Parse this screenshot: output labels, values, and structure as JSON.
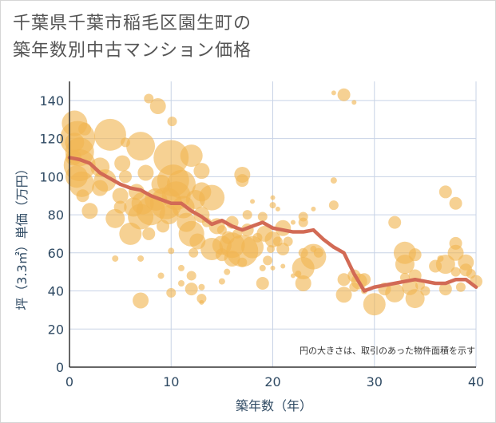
{
  "chart_data": {
    "type": "scatter",
    "title": "千葉県千葉市稲毛区園生町の\n築年数別中古マンション価格",
    "xlabel": "築年数（年）",
    "ylabel": "坪（3.3㎡）単価（万円）",
    "xlim": [
      0,
      40
    ],
    "ylim": [
      0,
      150
    ],
    "x_ticks": [
      "0",
      "10",
      "20",
      "30",
      "40"
    ],
    "y_ticks": [
      "0",
      "20",
      "40",
      "60",
      "80",
      "100",
      "120",
      "140"
    ],
    "annotation": "円の大きさは、取引のあった物件面積を示す",
    "grid": true,
    "colors": {
      "bubble": "#f0b451",
      "line": "#d26a55",
      "grid": "#c8d3e6",
      "axis": "#333333",
      "text": "#2f4a63"
    },
    "series": [
      {
        "type": "bubble",
        "points": [
          {
            "x": 0.5,
            "y": 128,
            "s": 16
          },
          {
            "x": 0.8,
            "y": 120,
            "s": 22
          },
          {
            "x": 1,
            "y": 113,
            "s": 18
          },
          {
            "x": 1,
            "y": 106,
            "s": 20
          },
          {
            "x": 0.7,
            "y": 100,
            "s": 14
          },
          {
            "x": 1.2,
            "y": 96,
            "s": 16
          },
          {
            "x": 0.5,
            "y": 118,
            "s": 12
          },
          {
            "x": 0.4,
            "y": 110,
            "s": 10
          },
          {
            "x": 1.3,
            "y": 90,
            "s": 8
          },
          {
            "x": 2,
            "y": 82,
            "s": 10
          },
          {
            "x": 1.5,
            "y": 125,
            "s": 8
          },
          {
            "x": 3,
            "y": 105,
            "s": 12
          },
          {
            "x": 3.5,
            "y": 98,
            "s": 14
          },
          {
            "x": 3,
            "y": 94,
            "s": 10
          },
          {
            "x": 4,
            "y": 122,
            "s": 20
          },
          {
            "x": 4.5,
            "y": 78,
            "s": 12
          },
          {
            "x": 5,
            "y": 90,
            "s": 10
          },
          {
            "x": 5.2,
            "y": 107,
            "s": 10
          },
          {
            "x": 5.5,
            "y": 100,
            "s": 8
          },
          {
            "x": 5,
            "y": 84,
            "s": 8
          },
          {
            "x": 4.5,
            "y": 57,
            "s": 4
          },
          {
            "x": 5.5,
            "y": 118,
            "s": 6
          },
          {
            "x": 6,
            "y": 70,
            "s": 14
          },
          {
            "x": 6.3,
            "y": 84,
            "s": 12
          },
          {
            "x": 6.6,
            "y": 92,
            "s": 10
          },
          {
            "x": 7,
            "y": 116,
            "s": 18
          },
          {
            "x": 7,
            "y": 79,
            "s": 16
          },
          {
            "x": 7.2,
            "y": 86,
            "s": 14
          },
          {
            "x": 7.5,
            "y": 102,
            "s": 10
          },
          {
            "x": 7,
            "y": 35,
            "s": 10
          },
          {
            "x": 7,
            "y": 57,
            "s": 4
          },
          {
            "x": 7.8,
            "y": 70,
            "s": 8
          },
          {
            "x": 7.8,
            "y": 141,
            "s": 6
          },
          {
            "x": 8,
            "y": 82,
            "s": 18
          },
          {
            "x": 8.5,
            "y": 88,
            "s": 14
          },
          {
            "x": 9,
            "y": 96,
            "s": 12
          },
          {
            "x": 8.7,
            "y": 137,
            "s": 10
          },
          {
            "x": 9.5,
            "y": 86,
            "s": 20
          },
          {
            "x": 9.8,
            "y": 80,
            "s": 12
          },
          {
            "x": 9,
            "y": 48,
            "s": 4
          },
          {
            "x": 9.2,
            "y": 74,
            "s": 8
          },
          {
            "x": 10,
            "y": 110,
            "s": 22
          },
          {
            "x": 10.2,
            "y": 98,
            "s": 20
          },
          {
            "x": 10.5,
            "y": 90,
            "s": 18
          },
          {
            "x": 10.1,
            "y": 129,
            "s": 6
          },
          {
            "x": 10,
            "y": 61,
            "s": 4
          },
          {
            "x": 10,
            "y": 39,
            "s": 6
          },
          {
            "x": 11,
            "y": 96,
            "s": 18
          },
          {
            "x": 11.2,
            "y": 84,
            "s": 14
          },
          {
            "x": 11.5,
            "y": 76,
            "s": 12
          },
          {
            "x": 11,
            "y": 52,
            "s": 4
          },
          {
            "x": 11,
            "y": 44,
            "s": 4
          },
          {
            "x": 12,
            "y": 111,
            "s": 14
          },
          {
            "x": 12,
            "y": 70,
            "s": 16
          },
          {
            "x": 12.4,
            "y": 88,
            "s": 12
          },
          {
            "x": 12.6,
            "y": 66,
            "s": 10
          },
          {
            "x": 12,
            "y": 48,
            "s": 6
          },
          {
            "x": 12,
            "y": 41,
            "s": 8
          },
          {
            "x": 12.2,
            "y": 60,
            "s": 6
          },
          {
            "x": 13,
            "y": 92,
            "s": 12
          },
          {
            "x": 13,
            "y": 80,
            "s": 10
          },
          {
            "x": 13,
            "y": 103,
            "s": 10
          },
          {
            "x": 13,
            "y": 36,
            "s": 6
          },
          {
            "x": 13,
            "y": 42,
            "s": 4
          },
          {
            "x": 13,
            "y": 34,
            "s": 3
          },
          {
            "x": 13.5,
            "y": 76,
            "s": 6
          },
          {
            "x": 14,
            "y": 89,
            "s": 16
          },
          {
            "x": 14,
            "y": 62,
            "s": 14
          },
          {
            "x": 14.5,
            "y": 74,
            "s": 10
          },
          {
            "x": 15,
            "y": 64,
            "s": 12
          },
          {
            "x": 15,
            "y": 59,
            "s": 8
          },
          {
            "x": 15,
            "y": 72,
            "s": 6
          },
          {
            "x": 15,
            "y": 45,
            "s": 4
          },
          {
            "x": 15.6,
            "y": 68,
            "s": 8
          },
          {
            "x": 15.5,
            "y": 50,
            "s": 4
          },
          {
            "x": 16,
            "y": 64,
            "s": 16
          },
          {
            "x": 16,
            "y": 57,
            "s": 10
          },
          {
            "x": 16,
            "y": 76,
            "s": 8
          },
          {
            "x": 16.5,
            "y": 70,
            "s": 6
          },
          {
            "x": 17,
            "y": 61,
            "s": 20
          },
          {
            "x": 17,
            "y": 101,
            "s": 10
          },
          {
            "x": 17,
            "y": 98,
            "s": 8
          },
          {
            "x": 17.5,
            "y": 80,
            "s": 6
          },
          {
            "x": 17.5,
            "y": 72,
            "s": 8
          },
          {
            "x": 17,
            "y": 55,
            "s": 6
          },
          {
            "x": 18,
            "y": 63,
            "s": 14
          },
          {
            "x": 18,
            "y": 87,
            "s": 3
          },
          {
            "x": 18.5,
            "y": 68,
            "s": 6
          },
          {
            "x": 19,
            "y": 79,
            "s": 6
          },
          {
            "x": 19,
            "y": 44,
            "s": 8
          },
          {
            "x": 19.2,
            "y": 70,
            "s": 10
          },
          {
            "x": 19,
            "y": 52,
            "s": 4
          },
          {
            "x": 19.5,
            "y": 56,
            "s": 6
          },
          {
            "x": 19.8,
            "y": 62,
            "s": 5
          },
          {
            "x": 20,
            "y": 67,
            "s": 10
          },
          {
            "x": 20,
            "y": 85,
            "s": 4
          },
          {
            "x": 20,
            "y": 89,
            "s": 3
          },
          {
            "x": 20,
            "y": 52,
            "s": 3
          },
          {
            "x": 20.5,
            "y": 83,
            "s": 3
          },
          {
            "x": 20.5,
            "y": 66,
            "s": 6
          },
          {
            "x": 21,
            "y": 73,
            "s": 10
          },
          {
            "x": 21,
            "y": 62,
            "s": 8
          },
          {
            "x": 21,
            "y": 53,
            "s": 3
          },
          {
            "x": 21.5,
            "y": 66,
            "s": 6
          },
          {
            "x": 22,
            "y": 48,
            "s": 3
          },
          {
            "x": 22,
            "y": 76,
            "s": 3
          },
          {
            "x": 23,
            "y": 79,
            "s": 6
          },
          {
            "x": 23,
            "y": 76,
            "s": 6
          },
          {
            "x": 23,
            "y": 52,
            "s": 14
          },
          {
            "x": 23,
            "y": 44,
            "s": 10
          },
          {
            "x": 22.5,
            "y": 49,
            "s": 4
          },
          {
            "x": 23,
            "y": 60,
            "s": 6
          },
          {
            "x": 24,
            "y": 58,
            "s": 16
          },
          {
            "x": 24,
            "y": 83,
            "s": 3
          },
          {
            "x": 24,
            "y": 62,
            "s": 4
          },
          {
            "x": 24.5,
            "y": 60,
            "s": 6
          },
          {
            "x": 26,
            "y": 98,
            "s": 4
          },
          {
            "x": 26,
            "y": 85,
            "s": 6
          },
          {
            "x": 26,
            "y": 144,
            "s": 3
          },
          {
            "x": 27,
            "y": 143,
            "s": 8
          },
          {
            "x": 27,
            "y": 46,
            "s": 8
          },
          {
            "x": 27,
            "y": 38,
            "s": 10
          },
          {
            "x": 28,
            "y": 139,
            "s": 3
          },
          {
            "x": 28,
            "y": 48,
            "s": 8
          },
          {
            "x": 28,
            "y": 42,
            "s": 6
          },
          {
            "x": 28.5,
            "y": 45,
            "s": 10
          },
          {
            "x": 29,
            "y": 46,
            "s": 8
          },
          {
            "x": 29,
            "y": 40,
            "s": 4
          },
          {
            "x": 30,
            "y": 33,
            "s": 14
          },
          {
            "x": 31,
            "y": 41,
            "s": 8
          },
          {
            "x": 32,
            "y": 39,
            "s": 12
          },
          {
            "x": 32,
            "y": 76,
            "s": 8
          },
          {
            "x": 33,
            "y": 60,
            "s": 14
          },
          {
            "x": 33,
            "y": 54,
            "s": 12
          },
          {
            "x": 33.5,
            "y": 42,
            "s": 10
          },
          {
            "x": 33,
            "y": 47,
            "s": 6
          },
          {
            "x": 34,
            "y": 36,
            "s": 12
          },
          {
            "x": 34,
            "y": 48,
            "s": 8
          },
          {
            "x": 34,
            "y": 59,
            "s": 8
          },
          {
            "x": 34.5,
            "y": 43,
            "s": 6
          },
          {
            "x": 35,
            "y": 40,
            "s": 6
          },
          {
            "x": 36,
            "y": 53,
            "s": 8
          },
          {
            "x": 36.5,
            "y": 57,
            "s": 4
          },
          {
            "x": 37,
            "y": 92,
            "s": 8
          },
          {
            "x": 37,
            "y": 54,
            "s": 12
          },
          {
            "x": 37,
            "y": 41,
            "s": 8
          },
          {
            "x": 38,
            "y": 86,
            "s": 8
          },
          {
            "x": 38,
            "y": 65,
            "s": 8
          },
          {
            "x": 38,
            "y": 60,
            "s": 10
          },
          {
            "x": 38,
            "y": 50,
            "s": 6
          },
          {
            "x": 38.5,
            "y": 42,
            "s": 6
          },
          {
            "x": 39,
            "y": 55,
            "s": 10
          },
          {
            "x": 39,
            "y": 51,
            "s": 8
          },
          {
            "x": 39.5,
            "y": 49,
            "s": 6
          },
          {
            "x": 40,
            "y": 45,
            "s": 8
          }
        ]
      },
      {
        "type": "line",
        "x": [
          0,
          1,
          2,
          3,
          4,
          5,
          6,
          7,
          8,
          9,
          10,
          11,
          12,
          13,
          14,
          15,
          16,
          17,
          18,
          19,
          20,
          21,
          22,
          23,
          24,
          25,
          26,
          27,
          28,
          29,
          30,
          31,
          32,
          33,
          34,
          35,
          36,
          37,
          38,
          39,
          40
        ],
        "values": [
          110,
          109,
          107,
          102,
          99,
          96,
          94,
          93,
          90,
          88,
          86,
          86,
          82,
          79,
          75,
          77,
          74,
          72,
          74,
          76,
          73,
          72,
          71,
          71,
          72,
          67,
          63,
          60,
          49,
          40,
          42,
          43,
          44,
          45,
          46,
          45,
          44,
          44,
          46,
          46,
          42
        ]
      }
    ]
  }
}
